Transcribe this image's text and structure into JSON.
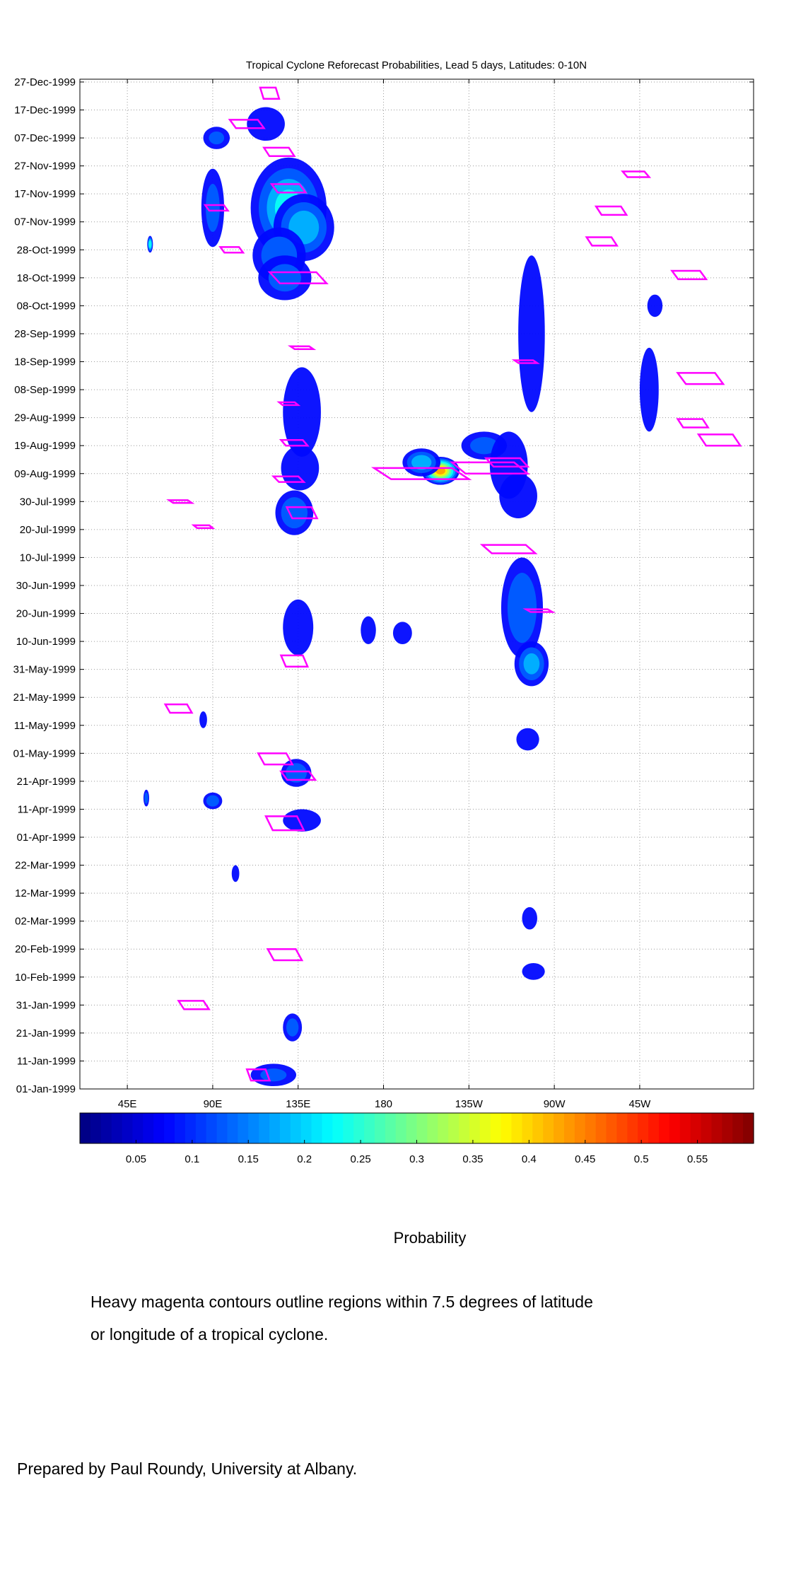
{
  "chart_data": {
    "type": "heatmap",
    "title": "Tropical Cyclone Reforecast Probabilities, Lead 5 days, Latitudes: 0-10N",
    "xlabel": "",
    "ylabel": "",
    "x_ticks": [
      "45E",
      "90E",
      "135E",
      "180",
      "135W",
      "90W",
      "45W"
    ],
    "y_ticks": [
      "27-Dec-1999",
      "17-Dec-1999",
      "07-Dec-1999",
      "27-Nov-1999",
      "17-Nov-1999",
      "07-Nov-1999",
      "28-Oct-1999",
      "18-Oct-1999",
      "08-Oct-1999",
      "28-Sep-1999",
      "18-Sep-1999",
      "08-Sep-1999",
      "29-Aug-1999",
      "19-Aug-1999",
      "09-Aug-1999",
      "30-Jul-1999",
      "20-Jul-1999",
      "10-Jul-1999",
      "30-Jun-1999",
      "20-Jun-1999",
      "10-Jun-1999",
      "31-May-1999",
      "21-May-1999",
      "11-May-1999",
      "01-May-1999",
      "21-Apr-1999",
      "11-Apr-1999",
      "01-Apr-1999",
      "22-Mar-1999",
      "12-Mar-1999",
      "02-Mar-1999",
      "20-Feb-1999",
      "10-Feb-1999",
      "31-Jan-1999",
      "21-Jan-1999",
      "11-Jan-1999",
      "01-Jan-1999"
    ],
    "colorbar": {
      "label": "Probability",
      "ticks": [
        "0.05",
        "0.1",
        "0.15",
        "0.2",
        "0.25",
        "0.3",
        "0.35",
        "0.4",
        "0.45",
        "0.5",
        "0.55"
      ],
      "range": [
        0,
        0.6
      ]
    },
    "grid": true,
    "contour_color": "#ff00ff",
    "blobs": [
      {
        "lon": 130,
        "day": 315,
        "dlon": 20,
        "ddays": 18,
        "p": 0.2
      },
      {
        "lon": 138,
        "day": 308,
        "dlon": 16,
        "ddays": 12,
        "p": 0.17
      },
      {
        "lon": 125,
        "day": 298,
        "dlon": 14,
        "ddays": 10,
        "p": 0.13
      },
      {
        "lon": 128,
        "day": 290,
        "dlon": 14,
        "ddays": 8,
        "p": 0.11
      },
      {
        "lon": 92,
        "day": 340,
        "dlon": 7,
        "ddays": 4,
        "p": 0.1
      },
      {
        "lon": 118,
        "day": 345,
        "dlon": 10,
        "ddays": 6,
        "p": 0.09
      },
      {
        "lon": 90,
        "day": 315,
        "dlon": 6,
        "ddays": 14,
        "p": 0.11
      },
      {
        "lon": 57,
        "day": 302,
        "dlon": 1.5,
        "ddays": 3,
        "p": 0.24
      },
      {
        "lon": 137,
        "day": 242,
        "dlon": 10,
        "ddays": 16,
        "p": 0.09
      },
      {
        "lon": 136,
        "day": 222,
        "dlon": 10,
        "ddays": 8,
        "p": 0.09
      },
      {
        "lon": 133,
        "day": 206,
        "dlon": 10,
        "ddays": 8,
        "p": 0.14
      },
      {
        "lon": 135,
        "day": 165,
        "dlon": 8,
        "ddays": 10,
        "p": 0.08
      },
      {
        "lon": 134,
        "day": 113,
        "dlon": 8,
        "ddays": 5,
        "p": 0.14
      },
      {
        "lon": 137,
        "day": 96,
        "dlon": 10,
        "ddays": 4,
        "p": 0.08
      },
      {
        "lon": 132,
        "day": 22,
        "dlon": 5,
        "ddays": 5,
        "p": 0.12
      },
      {
        "lon": 122,
        "day": 5,
        "dlon": 12,
        "ddays": 4,
        "p": 0.1
      },
      {
        "lon": 90,
        "day": 103,
        "dlon": 5,
        "ddays": 3,
        "p": 0.13
      },
      {
        "lon": 210,
        "day": 221,
        "dlon": 10,
        "ddays": 5,
        "p": 0.4
      },
      {
        "lon": 200,
        "day": 224,
        "dlon": 10,
        "ddays": 5,
        "p": 0.18
      },
      {
        "lon": 233,
        "day": 230,
        "dlon": 12,
        "ddays": 5,
        "p": 0.11
      },
      {
        "lon": 246,
        "day": 223,
        "dlon": 10,
        "ddays": 12,
        "p": 0.09
      },
      {
        "lon": 251,
        "day": 212,
        "dlon": 10,
        "ddays": 8,
        "p": 0.07
      },
      {
        "lon": 253,
        "day": 172,
        "dlon": 11,
        "ddays": 18,
        "p": 0.14
      },
      {
        "lon": 258,
        "day": 152,
        "dlon": 9,
        "ddays": 8,
        "p": 0.16
      },
      {
        "lon": 258,
        "day": 270,
        "dlon": 7,
        "ddays": 28,
        "p": 0.08
      },
      {
        "lon": 256,
        "day": 125,
        "dlon": 6,
        "ddays": 4,
        "p": 0.07
      },
      {
        "lon": 257,
        "day": 61,
        "dlon": 4,
        "ddays": 4,
        "p": 0.07
      },
      {
        "lon": 259,
        "day": 42,
        "dlon": 6,
        "ddays": 3,
        "p": 0.07
      },
      {
        "lon": 320,
        "day": 250,
        "dlon": 5,
        "ddays": 15,
        "p": 0.07
      },
      {
        "lon": 323,
        "day": 280,
        "dlon": 4,
        "ddays": 4,
        "p": 0.07
      },
      {
        "lon": 172,
        "day": 164,
        "dlon": 4,
        "ddays": 5,
        "p": 0.07
      },
      {
        "lon": 190,
        "day": 163,
        "dlon": 5,
        "ddays": 4,
        "p": 0.07
      },
      {
        "lon": 102,
        "day": 77,
        "dlon": 2,
        "ddays": 3,
        "p": 0.06
      },
      {
        "lon": 55,
        "day": 104,
        "dlon": 1.5,
        "ddays": 3,
        "p": 0.13
      },
      {
        "lon": 85,
        "day": 132,
        "dlon": 2,
        "ddays": 3,
        "p": 0.07
      }
    ],
    "tc_contours": [
      {
        "lon": 92,
        "day": 315,
        "w": 12,
        "h": 2
      },
      {
        "lon": 100,
        "day": 300,
        "w": 12,
        "h": 2
      },
      {
        "lon": 125,
        "day": 335,
        "w": 16,
        "h": 3
      },
      {
        "lon": 108,
        "day": 345,
        "w": 18,
        "h": 3
      },
      {
        "lon": 120,
        "day": 356,
        "w": 10,
        "h": 4
      },
      {
        "lon": 130,
        "day": 322,
        "w": 18,
        "h": 3
      },
      {
        "lon": 135,
        "day": 290,
        "w": 30,
        "h": 4
      },
      {
        "lon": 137,
        "day": 265,
        "w": 12,
        "h": 1
      },
      {
        "lon": 130,
        "day": 245,
        "w": 10,
        "h": 1
      },
      {
        "lon": 133,
        "day": 231,
        "w": 14,
        "h": 2
      },
      {
        "lon": 130,
        "day": 218,
        "w": 16,
        "h": 2
      },
      {
        "lon": 137,
        "day": 206,
        "w": 16,
        "h": 4
      },
      {
        "lon": 200,
        "day": 220,
        "w": 50,
        "h": 4
      },
      {
        "lon": 236,
        "day": 222,
        "w": 40,
        "h": 4
      },
      {
        "lon": 245,
        "day": 224,
        "w": 22,
        "h": 3
      },
      {
        "lon": 246,
        "day": 193,
        "w": 28,
        "h": 3
      },
      {
        "lon": 262,
        "day": 171,
        "w": 14,
        "h": 1
      },
      {
        "lon": 255,
        "day": 260,
        "w": 12,
        "h": 1
      },
      {
        "lon": 300,
        "day": 314,
        "w": 16,
        "h": 3
      },
      {
        "lon": 313,
        "day": 327,
        "w": 14,
        "h": 2
      },
      {
        "lon": 295,
        "day": 303,
        "w": 16,
        "h": 3
      },
      {
        "lon": 341,
        "day": 291,
        "w": 18,
        "h": 3
      },
      {
        "lon": 347,
        "day": 254,
        "w": 24,
        "h": 4
      },
      {
        "lon": 357,
        "day": 232,
        "w": 22,
        "h": 4
      },
      {
        "lon": 343,
        "day": 238,
        "w": 16,
        "h": 3
      },
      {
        "lon": 73,
        "day": 210,
        "w": 12,
        "h": 1
      },
      {
        "lon": 85,
        "day": 201,
        "w": 10,
        "h": 1
      },
      {
        "lon": 133,
        "day": 153,
        "w": 14,
        "h": 4
      },
      {
        "lon": 123,
        "day": 118,
        "w": 18,
        "h": 4
      },
      {
        "lon": 135,
        "day": 112,
        "w": 18,
        "h": 3
      },
      {
        "lon": 128,
        "day": 95,
        "w": 20,
        "h": 5
      },
      {
        "lon": 72,
        "day": 136,
        "w": 14,
        "h": 3
      },
      {
        "lon": 128,
        "day": 48,
        "w": 18,
        "h": 4
      },
      {
        "lon": 80,
        "day": 30,
        "w": 16,
        "h": 3
      },
      {
        "lon": 114,
        "day": 5,
        "w": 12,
        "h": 4
      }
    ]
  },
  "caption": {
    "note_line1": "Heavy magenta contours outline regions within 7.5 degrees of latitude",
    "note_line2": "or longitude of a tropical cyclone.",
    "credit": "Prepared by Paul Roundy, University at Albany."
  }
}
